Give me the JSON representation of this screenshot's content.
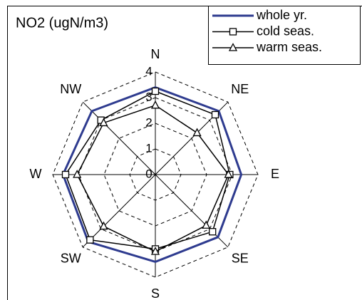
{
  "chart_data": {
    "type": "radar",
    "title": "NO2 (ugN/m3)",
    "categories": [
      "N",
      "NE",
      "E",
      "SE",
      "S",
      "SW",
      "W",
      "NW"
    ],
    "rlim": [
      0,
      4
    ],
    "rticks": [
      0,
      1,
      2,
      3,
      4
    ],
    "series": [
      {
        "name": "whole yr.",
        "color": "#2e3b8f",
        "marker": "none",
        "values": [
          3.4,
          3.5,
          3.35,
          3.45,
          3.4,
          3.7,
          3.6,
          3.5
        ]
      },
      {
        "name": "cold seas.",
        "color": "#000000",
        "marker": "square",
        "values": [
          3.25,
          3.3,
          2.9,
          3.15,
          2.9,
          3.6,
          3.5,
          3.0
        ]
      },
      {
        "name": "warm seas.",
        "color": "#000000",
        "marker": "triangle",
        "values": [
          2.7,
          2.3,
          2.85,
          2.8,
          3.0,
          2.85,
          3.05,
          2.85
        ]
      }
    ]
  }
}
